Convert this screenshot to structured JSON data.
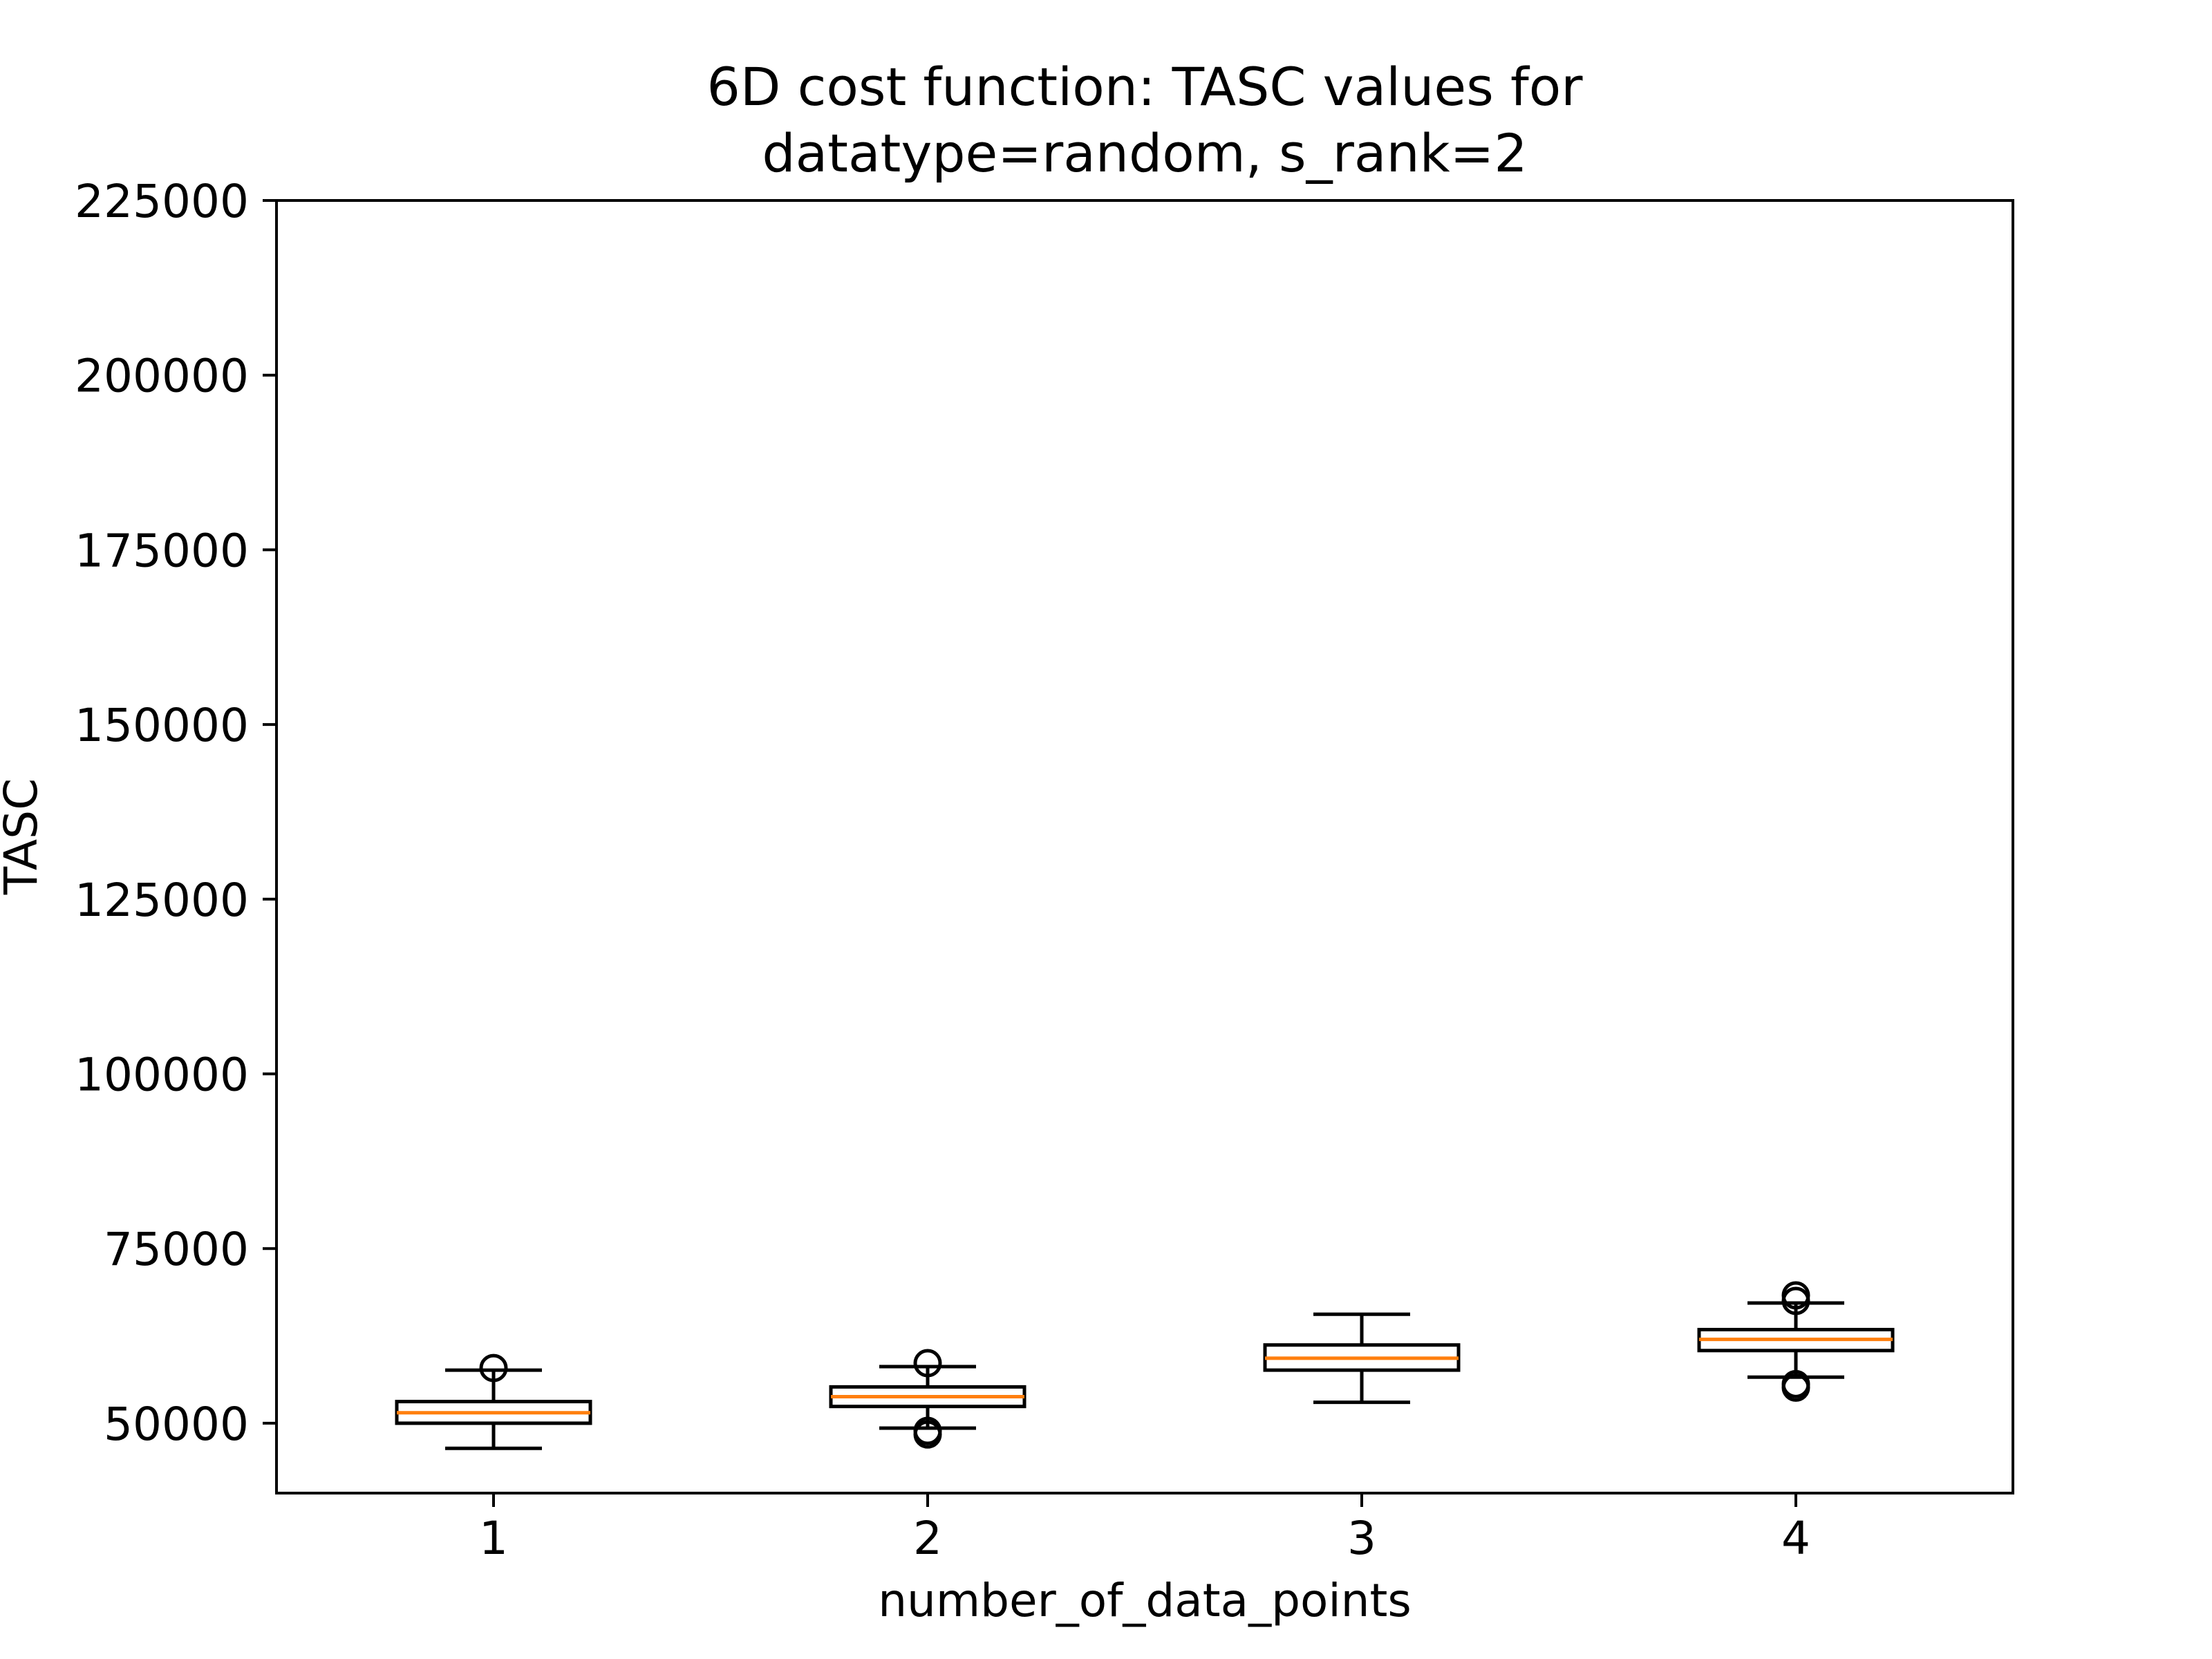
{
  "chart_data": {
    "type": "boxplot",
    "title": "6D cost function: TASC values for\ndatatype=random, s_rank=2",
    "xlabel": "number_of_data_points",
    "ylabel": "TASC",
    "categories": [
      "1",
      "2",
      "3",
      "4"
    ],
    "x_ticks": [
      1,
      2,
      3,
      4
    ],
    "y_ticks": [
      50000,
      75000,
      100000,
      125000,
      150000,
      175000,
      200000,
      225000
    ],
    "y_tick_labels": [
      "50000",
      "75000",
      "100000",
      "125000",
      "150000",
      "175000",
      "200000",
      "225000"
    ],
    "ylim": [
      40000,
      225000
    ],
    "grid": false,
    "boxes": [
      {
        "category": "1",
        "whisker_low": 46400,
        "q1": 50000,
        "median": 51500,
        "q3": 53100,
        "whisker_high": 57600,
        "outliers": [
          57900
        ]
      },
      {
        "category": "2",
        "whisker_low": 49300,
        "q1": 52400,
        "median": 53800,
        "q3": 55200,
        "whisker_high": 58100,
        "outliers": [
          58600,
          48400,
          48900
        ]
      },
      {
        "category": "3",
        "whisker_low": 53000,
        "q1": 57600,
        "median": 59300,
        "q3": 61200,
        "whisker_high": 65600,
        "outliers": []
      },
      {
        "category": "4",
        "whisker_low": 56600,
        "q1": 60400,
        "median": 62000,
        "q3": 63400,
        "whisker_high": 67200,
        "outliers": [
          68300,
          67500,
          55600,
          55100
        ]
      }
    ],
    "colors": {
      "box_edge": "#000000",
      "median": "#ff7f0e",
      "outlier_edge": "#000000"
    }
  }
}
